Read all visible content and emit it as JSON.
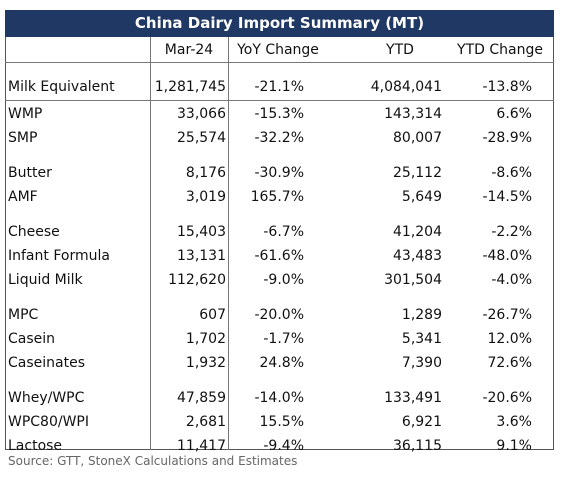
{
  "title": "China Dairy Import Summary (MT)",
  "columns": [
    "",
    "Mar-24",
    "YoY Change",
    "YTD",
    "YTD Change"
  ],
  "groups": [
    [
      [
        "Milk Equivalent",
        "1,281,745",
        "-21.1%",
        "4,084,041",
        "-13.8%"
      ]
    ],
    [
      [
        "WMP",
        "33,066",
        "-15.3%",
        "143,314",
        "6.6%"
      ],
      [
        "SMP",
        "25,574",
        "-32.2%",
        "80,007",
        "-28.9%"
      ]
    ],
    [
      [
        "Butter",
        "8,176",
        "-30.9%",
        "25,112",
        "-8.6%"
      ],
      [
        "AMF",
        "3,019",
        "165.7%",
        "5,649",
        "-14.5%"
      ]
    ],
    [
      [
        "Cheese",
        "15,403",
        "-6.7%",
        "41,204",
        "-2.2%"
      ],
      [
        "Infant Formula",
        "13,131",
        "-61.6%",
        "43,483",
        "-48.0%"
      ],
      [
        "Liquid Milk",
        "112,620",
        "-9.0%",
        "301,504",
        "-4.0%"
      ]
    ],
    [
      [
        "MPC",
        "607",
        "-20.0%",
        "1,289",
        "-26.7%"
      ],
      [
        "Casein",
        "1,702",
        "-1.7%",
        "5,341",
        "12.0%"
      ],
      [
        "Caseinates",
        "1,932",
        "24.8%",
        "7,390",
        "72.6%"
      ]
    ],
    [
      [
        "Whey/WPC",
        "47,859",
        "-14.0%",
        "133,491",
        "-20.6%"
      ],
      [
        "WPC80/WPI",
        "2,681",
        "15.5%",
        "6,921",
        "3.6%"
      ],
      [
        "Lactose",
        "11,417",
        "-9.4%",
        "36,115",
        "9.1%"
      ]
    ]
  ],
  "source": "Source: GTT, StoneX Calculations and Estimates"
}
